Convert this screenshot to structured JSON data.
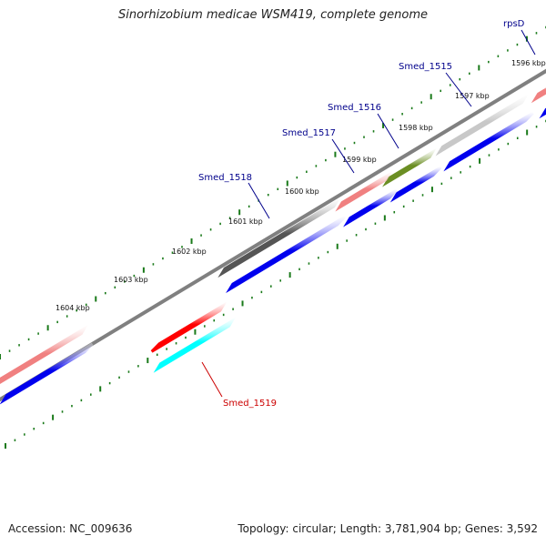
{
  "title": "Sinorhizobium medicae WSM419, complete genome",
  "footer": {
    "accession": "Accession: NC_009636",
    "summary": "Topology: circular; Length: 3,781,904 bp; Genes: 3,592"
  },
  "colors": {
    "backbone": "#808080",
    "tick": "#1a7a1a",
    "cds": "#0000ee",
    "label_forward": "#00008b",
    "label_reverse": "#cc0000"
  },
  "scale": {
    "ticks_kbp": [
      {
        "label": "1596 kbp",
        "value": 1596
      },
      {
        "label": "1597 kbp",
        "value": 1597
      },
      {
        "label": "1598 kbp",
        "value": 1598
      },
      {
        "label": "1599 kbp",
        "value": 1599
      },
      {
        "label": "1600 kbp",
        "value": 1600
      },
      {
        "label": "1601 kbp",
        "value": 1601
      },
      {
        "label": "1602 kbp",
        "value": 1602
      },
      {
        "label": "1603 kbp",
        "value": 1603
      },
      {
        "label": "1604 kbp",
        "value": 1604
      }
    ]
  },
  "genes": [
    {
      "name": "rpsD",
      "strand": "forward",
      "color": "#f08080"
    },
    {
      "name": "Smed_1515",
      "strand": "forward",
      "color": "#c8c8c8"
    },
    {
      "name": "Smed_1516",
      "strand": "forward",
      "color": "#6b8e23"
    },
    {
      "name": "Smed_1517",
      "strand": "forward",
      "color": "#f08080"
    },
    {
      "name": "Smed_1518",
      "strand": "forward",
      "color": "#555555"
    },
    {
      "name": "",
      "strand": "forward",
      "color": "#f08080"
    },
    {
      "name": "Smed_1519",
      "strand": "reverse",
      "color": "#ff0000",
      "cds_color": "#00ffff"
    }
  ]
}
